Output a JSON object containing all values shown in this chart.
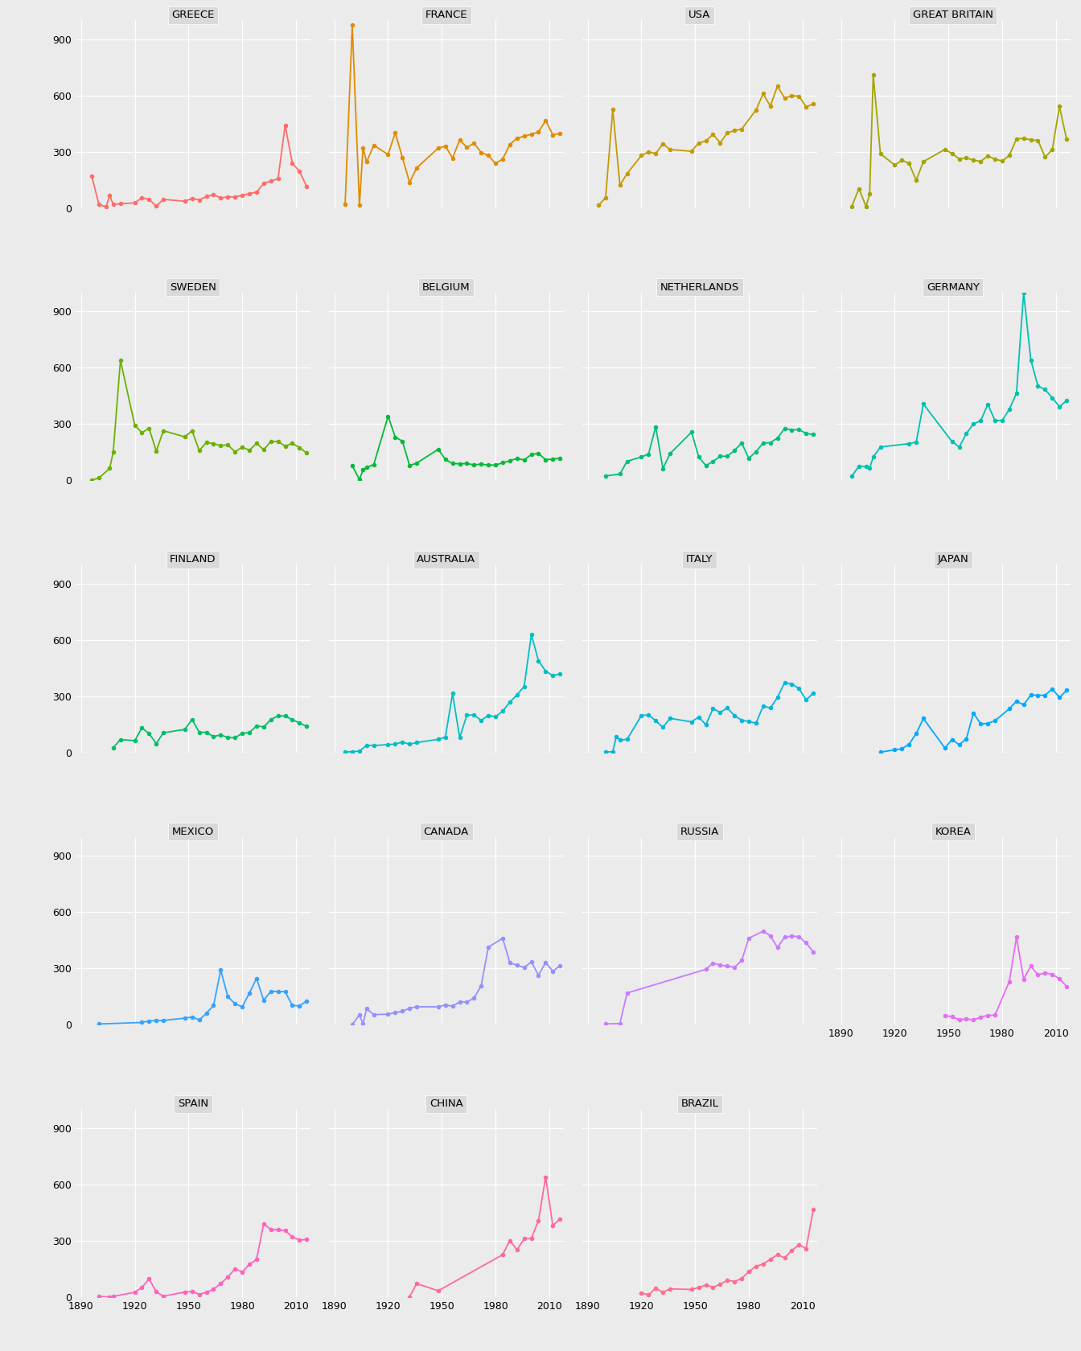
{
  "background_color": "#EBEBEB",
  "grid_color": "#FFFFFF",
  "strip_color": "#D9D9D9",
  "countries": [
    "GREECE",
    "FRANCE",
    "USA",
    "GREAT BRITAIN",
    "SWEDEN",
    "BELGIUM",
    "NETHERLANDS",
    "GERMANY",
    "FINLAND",
    "AUSTRALIA",
    "ITALY",
    "JAPAN",
    "MEXICO",
    "CANADA",
    "RUSSIA",
    "KOREA",
    "SPAIN",
    "CHINA",
    "BRAZIL"
  ],
  "country_colors": {
    "GREECE": "#FF6C67",
    "FRANCE": "#E08B00",
    "USA": "#C49A00",
    "GREAT BRITAIN": "#A3A500",
    "SWEDEN": "#6BB100",
    "BELGIUM": "#00BA38",
    "NETHERLANDS": "#00BF7D",
    "GERMANY": "#00C0AF",
    "FINLAND": "#00BE67",
    "AUSTRALIA": "#00BFC4",
    "ITALY": "#00B8D9",
    "JAPAN": "#00A9FF",
    "MEXICO": "#35A2FF",
    "CANADA": "#9590FF",
    "RUSSIA": "#C77CFF",
    "KOREA": "#E76BF3",
    "SPAIN": "#FF62BC",
    "CHINA": "#FF67A4",
    "BRAZIL": "#FF6C90"
  },
  "data": {
    "GREECE": {
      "years": [
        1896,
        1900,
        1904,
        1906,
        1908,
        1912,
        1920,
        1924,
        1928,
        1932,
        1936,
        1948,
        1952,
        1956,
        1960,
        1964,
        1968,
        1972,
        1976,
        1980,
        1984,
        1988,
        1992,
        1996,
        2000,
        2004,
        2008,
        2012,
        2016
      ],
      "values": [
        169,
        19,
        6,
        67,
        18,
        23,
        27,
        55,
        46,
        10,
        46,
        36,
        51,
        43,
        61,
        71,
        54,
        59,
        59,
        68,
        77,
        84,
        131,
        144,
        155,
        441,
        238,
        196,
        115
      ]
    },
    "FRANCE": {
      "years": [
        1896,
        1900,
        1904,
        1906,
        1908,
        1912,
        1920,
        1924,
        1928,
        1932,
        1936,
        1948,
        1952,
        1956,
        1960,
        1964,
        1968,
        1972,
        1976,
        1980,
        1984,
        1988,
        1992,
        1996,
        2000,
        2004,
        2008,
        2012,
        2016
      ],
      "values": [
        19,
        975,
        15,
        321,
        245,
        334,
        285,
        401,
        269,
        136,
        214,
        319,
        330,
        266,
        363,
        323,
        345,
        296,
        280,
        237,
        261,
        338,
        372,
        382,
        393,
        404,
        466,
        390,
        396
      ]
    },
    "USA": {
      "years": [
        1896,
        1900,
        1904,
        1908,
        1912,
        1920,
        1924,
        1928,
        1932,
        1936,
        1948,
        1952,
        1956,
        1960,
        1964,
        1968,
        1972,
        1976,
        1984,
        1988,
        1992,
        1996,
        2000,
        2004,
        2008,
        2012,
        2016
      ],
      "values": [
        14,
        55,
        526,
        122,
        183,
        280,
        299,
        290,
        342,
        312,
        302,
        347,
        357,
        393,
        347,
        400,
        413,
        420,
        522,
        609,
        543,
        650,
        585,
        598,
        596,
        539,
        554
      ]
    },
    "GREAT BRITAIN": {
      "years": [
        1896,
        1900,
        1904,
        1906,
        1908,
        1912,
        1920,
        1924,
        1928,
        1932,
        1936,
        1948,
        1952,
        1956,
        1960,
        1964,
        1968,
        1972,
        1976,
        1980,
        1984,
        1988,
        1992,
        1996,
        2000,
        2004,
        2008,
        2012,
        2016
      ],
      "values": [
        8,
        103,
        8,
        74,
        710,
        289,
        229,
        254,
        238,
        148,
        247,
        312,
        290,
        262,
        267,
        255,
        248,
        277,
        261,
        250,
        280,
        368,
        371,
        363,
        360,
        271,
        311,
        541,
        366
      ]
    },
    "SWEDEN": {
      "years": [
        1896,
        1900,
        1906,
        1908,
        1912,
        1920,
        1924,
        1928,
        1932,
        1936,
        1948,
        1952,
        1956,
        1960,
        1964,
        1968,
        1972,
        1976,
        1980,
        1984,
        1988,
        1992,
        1996,
        2000,
        2004,
        2008,
        2012,
        2016
      ],
      "values": [
        1,
        12,
        63,
        152,
        639,
        293,
        253,
        277,
        155,
        264,
        231,
        264,
        158,
        201,
        195,
        184,
        189,
        151,
        176,
        160,
        196,
        163,
        206,
        207,
        182,
        196,
        174,
        145
      ]
    },
    "BELGIUM": {
      "years": [
        1900,
        1904,
        1906,
        1908,
        1912,
        1920,
        1924,
        1928,
        1932,
        1936,
        1948,
        1952,
        1956,
        1960,
        1964,
        1968,
        1972,
        1976,
        1980,
        1984,
        1988,
        1992,
        1996,
        2000,
        2004,
        2008,
        2012,
        2016
      ],
      "values": [
        77,
        4,
        55,
        68,
        84,
        341,
        230,
        208,
        79,
        91,
        165,
        111,
        89,
        88,
        89,
        82,
        86,
        81,
        81,
        93,
        104,
        116,
        108,
        137,
        143,
        109,
        113,
        117
      ]
    },
    "NETHERLANDS": {
      "years": [
        1900,
        1908,
        1912,
        1920,
        1924,
        1928,
        1932,
        1936,
        1948,
        1952,
        1956,
        1960,
        1964,
        1968,
        1972,
        1976,
        1980,
        1984,
        1988,
        1992,
        1996,
        2000,
        2004,
        2008,
        2012,
        2016
      ],
      "values": [
        23,
        33,
        101,
        124,
        140,
        285,
        62,
        142,
        256,
        125,
        78,
        100,
        128,
        128,
        159,
        198,
        117,
        152,
        198,
        200,
        225,
        276,
        268,
        270,
        249,
        244
      ]
    },
    "GERMANY": {
      "years": [
        1896,
        1900,
        1904,
        1906,
        1908,
        1912,
        1928,
        1932,
        1936,
        1952,
        1956,
        1960,
        1964,
        1968,
        1972,
        1976,
        1980,
        1984,
        1988,
        1992,
        1996,
        2000,
        2004,
        2008,
        2012,
        2016
      ],
      "values": [
        21,
        75,
        72,
        64,
        124,
        177,
        195,
        203,
        406,
        206,
        177,
        248,
        301,
        316,
        405,
        318,
        318,
        378,
        463,
        1000,
        641,
        502,
        483,
        439,
        392,
        424
      ]
    },
    "FINLAND": {
      "years": [
        1908,
        1912,
        1920,
        1924,
        1928,
        1932,
        1936,
        1948,
        1952,
        1956,
        1960,
        1964,
        1968,
        1972,
        1976,
        1980,
        1984,
        1988,
        1992,
        1996,
        2000,
        2004,
        2008,
        2012,
        2016
      ],
      "values": [
        26,
        69,
        63,
        131,
        101,
        48,
        105,
        123,
        176,
        108,
        107,
        85,
        94,
        79,
        79,
        102,
        106,
        142,
        136,
        175,
        196,
        194,
        175,
        157,
        139
      ]
    },
    "AUSTRALIA": {
      "years": [
        1896,
        1900,
        1904,
        1908,
        1912,
        1920,
        1924,
        1928,
        1932,
        1936,
        1948,
        1952,
        1956,
        1960,
        1964,
        1968,
        1972,
        1976,
        1980,
        1984,
        1988,
        1992,
        1996,
        2000,
        2004,
        2008,
        2012,
        2016
      ],
      "values": [
        2,
        5,
        7,
        38,
        37,
        42,
        45,
        56,
        44,
        53,
        70,
        82,
        314,
        79,
        199,
        200,
        171,
        198,
        190,
        220,
        268,
        307,
        352,
        628,
        489,
        433,
        410,
        419
      ]
    },
    "ITALY": {
      "years": [
        1900,
        1904,
        1906,
        1908,
        1912,
        1920,
        1924,
        1928,
        1932,
        1936,
        1948,
        1952,
        1956,
        1960,
        1964,
        1968,
        1972,
        1976,
        1980,
        1984,
        1988,
        1992,
        1996,
        2000,
        2004,
        2008,
        2012,
        2016
      ],
      "values": [
        3,
        4,
        85,
        66,
        70,
        197,
        200,
        169,
        134,
        182,
        163,
        189,
        148,
        233,
        214,
        237,
        196,
        172,
        165,
        156,
        247,
        237,
        293,
        372,
        365,
        341,
        280,
        316
      ]
    },
    "JAPAN": {
      "years": [
        1912,
        1920,
        1924,
        1928,
        1932,
        1936,
        1948,
        1952,
        1956,
        1960,
        1964,
        1968,
        1972,
        1976,
        1984,
        1988,
        1992,
        1996,
        2000,
        2004,
        2008,
        2012,
        2016
      ],
      "values": [
        2,
        14,
        20,
        43,
        101,
        181,
        24,
        69,
        41,
        73,
        210,
        152,
        155,
        169,
        233,
        273,
        254,
        306,
        305,
        305,
        339,
        293,
        331
      ]
    },
    "MEXICO": {
      "years": [
        1900,
        1924,
        1928,
        1932,
        1936,
        1948,
        1952,
        1956,
        1960,
        1964,
        1968,
        1972,
        1976,
        1980,
        1984,
        1988,
        1992,
        1996,
        2000,
        2004,
        2008,
        2012,
        2016
      ],
      "values": [
        4,
        12,
        20,
        22,
        23,
        35,
        41,
        25,
        61,
        102,
        291,
        149,
        112,
        95,
        168,
        247,
        130,
        178,
        177,
        176,
        103,
        100,
        127
      ]
    },
    "CANADA": {
      "years": [
        1900,
        1904,
        1906,
        1908,
        1912,
        1920,
        1924,
        1928,
        1932,
        1936,
        1948,
        1952,
        1956,
        1960,
        1964,
        1968,
        1972,
        1976,
        1984,
        1988,
        1992,
        1996,
        2000,
        2004,
        2008,
        2012,
        2016
      ],
      "values": [
        2,
        52,
        6,
        85,
        54,
        56,
        65,
        72,
        88,
        96,
        95,
        106,
        98,
        122,
        121,
        142,
        208,
        413,
        461,
        330,
        317,
        305,
        334,
        264,
        332,
        285,
        314
      ]
    },
    "RUSSIA": {
      "years": [
        1900,
        1908,
        1912,
        1956,
        1960,
        1964,
        1968,
        1972,
        1976,
        1980,
        1988,
        1992,
        1996,
        2000,
        2004,
        2008,
        2012,
        2016
      ],
      "values": [
        4,
        6,
        169,
        295,
        328,
        318,
        312,
        306,
        342,
        461,
        498,
        474,
        411,
        467,
        472,
        469,
        436,
        387
      ]
    },
    "KOREA": {
      "years": [
        1948,
        1952,
        1956,
        1960,
        1964,
        1968,
        1972,
        1976,
        1984,
        1988,
        1992,
        1996,
        2000,
        2004,
        2008,
        2012,
        2016
      ],
      "values": [
        50,
        42,
        27,
        31,
        26,
        40,
        50,
        51,
        230,
        466,
        243,
        312,
        266,
        276,
        268,
        245,
        204
      ]
    },
    "SPAIN": {
      "years": [
        1900,
        1906,
        1908,
        1920,
        1924,
        1928,
        1932,
        1936,
        1948,
        1952,
        1956,
        1960,
        1964,
        1968,
        1972,
        1976,
        1980,
        1984,
        1988,
        1992,
        1996,
        2000,
        2004,
        2008,
        2012,
        2016
      ],
      "values": [
        2,
        1,
        3,
        25,
        50,
        97,
        27,
        4,
        26,
        30,
        14,
        25,
        41,
        72,
        106,
        150,
        133,
        173,
        199,
        390,
        359,
        358,
        354,
        320,
        303,
        306
      ]
    },
    "CHINA": {
      "years": [
        1932,
        1936,
        1948,
        1984,
        1988,
        1992,
        1996,
        2000,
        2004,
        2008,
        2012,
        2016
      ],
      "values": [
        1,
        71,
        33,
        225,
        301,
        251,
        310,
        311,
        407,
        639,
        380,
        416
      ]
    },
    "BRAZIL": {
      "years": [
        1920,
        1924,
        1928,
        1932,
        1936,
        1948,
        1952,
        1956,
        1960,
        1964,
        1968,
        1972,
        1976,
        1980,
        1984,
        1988,
        1992,
        1996,
        2000,
        2004,
        2008,
        2012,
        2016
      ],
      "values": [
        21,
        12,
        47,
        25,
        43,
        40,
        50,
        64,
        52,
        67,
        89,
        82,
        99,
        135,
        164,
        175,
        201,
        225,
        208,
        248,
        278,
        258,
        465
      ]
    }
  },
  "ylim": [
    0,
    1000
  ],
  "yticks": [
    0,
    300,
    600,
    900
  ],
  "xlim": [
    1887,
    2018
  ],
  "xticks": [
    1890,
    1920,
    1950,
    1980,
    2010
  ]
}
